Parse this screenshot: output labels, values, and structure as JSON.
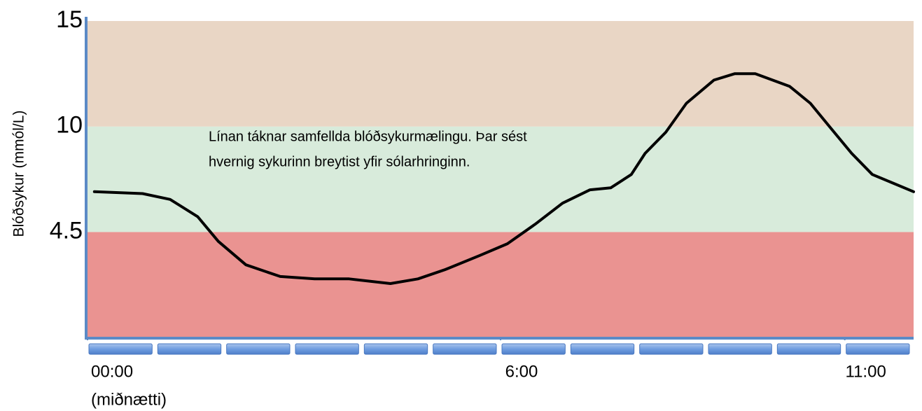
{
  "chart_data": {
    "type": "line",
    "y_label": "Blóðsykur (mmól/L)",
    "annotation": [
      "Línan táknar samfellda blóðsykurmælingu. Þar sést",
      "hvernig sykurinn breytist yfir sólarhringinn."
    ],
    "ylim": [
      0,
      15
    ],
    "yticks": [
      4.5,
      10,
      15
    ],
    "scale": "piecewise",
    "band_colors": [
      "#ea9391",
      "#d8ebdb",
      "#e9d6c5"
    ],
    "xlim": [
      0,
      12
    ],
    "xticks": [
      {
        "value": 0,
        "label": "00:00"
      },
      {
        "value": 6,
        "label": "6:00"
      },
      {
        "value": 11,
        "label": "11:00"
      }
    ],
    "x_tick_note": "(miðnætti)",
    "color": "#000000",
    "x": [
      0.1,
      0.8,
      1.2,
      1.6,
      1.9,
      2.3,
      2.8,
      3.3,
      3.8,
      4.4,
      4.8,
      5.2,
      5.7,
      6.1,
      6.5,
      6.9,
      7.3,
      7.6,
      7.9,
      8.1,
      8.4,
      8.7,
      9.1,
      9.4,
      9.7,
      10.2,
      10.5,
      10.8,
      11.1,
      11.4,
      12.0
    ],
    "values": [
      6.6,
      6.5,
      6.2,
      5.3,
      4.1,
      3.1,
      2.6,
      2.5,
      2.5,
      2.3,
      2.5,
      2.9,
      3.5,
      4.0,
      4.9,
      6.0,
      6.7,
      6.8,
      7.5,
      8.6,
      9.7,
      11.1,
      12.2,
      12.5,
      12.5,
      11.9,
      11.1,
      9.9,
      8.6,
      7.5,
      6.6
    ]
  }
}
